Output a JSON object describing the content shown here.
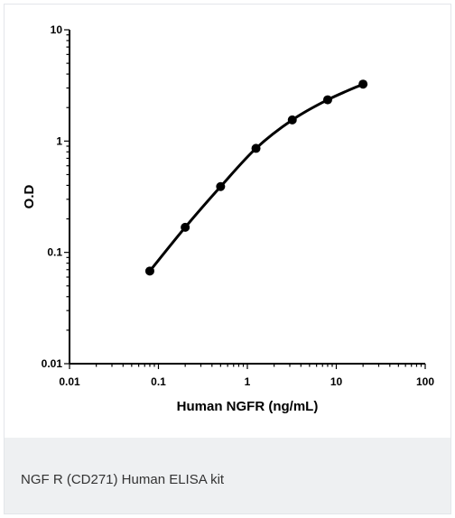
{
  "chart_data": {
    "type": "line",
    "xlabel": "Human NGFR (ng/mL)",
    "ylabel": "O.D",
    "xscale": "log",
    "yscale": "log",
    "xlim": [
      0.01,
      100
    ],
    "ylim": [
      0.01,
      10
    ],
    "x_tick_labels": [
      "0.01",
      "0.1",
      "1",
      "10",
      "100"
    ],
    "y_tick_labels": [
      "10",
      "1",
      "0.1",
      "0.01"
    ],
    "series": [
      {
        "x": [
          0.08,
          0.2,
          0.5,
          1.25,
          3.2,
          8,
          20
        ],
        "y": [
          0.068,
          0.168,
          0.39,
          0.86,
          1.55,
          2.35,
          3.25
        ]
      }
    ],
    "grid": false,
    "legend": "none",
    "line_color": "#000000"
  },
  "caption": "NGF R (CD271) Human ELISA kit"
}
